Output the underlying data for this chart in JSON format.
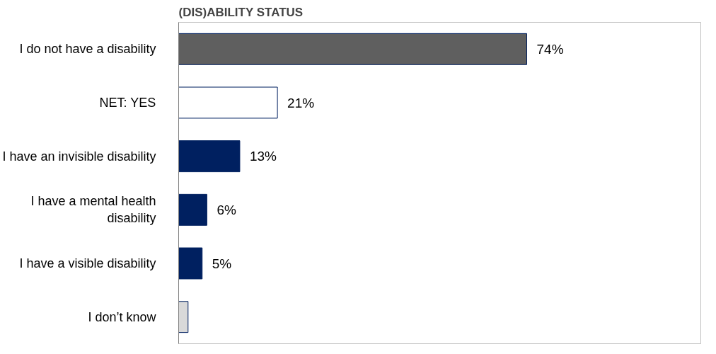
{
  "chart_data": {
    "type": "bar",
    "orientation": "horizontal",
    "title": "(DIS)ABILITY STATUS",
    "categories": [
      "I do not have a disability",
      "NET: YES",
      "I have an invisible disability",
      "I have a mental health disability",
      "I have a visible disability",
      "I don’t know"
    ],
    "values": [
      74,
      21,
      13,
      6,
      5,
      2
    ],
    "colors": [
      "#5f5f5f",
      "#ffffff",
      "#002060",
      "#002060",
      "#002060",
      "#d9d9d9"
    ],
    "value_labels": [
      "74%",
      "21%",
      "13%",
      "6%",
      "5%",
      null
    ],
    "grid": false
  }
}
